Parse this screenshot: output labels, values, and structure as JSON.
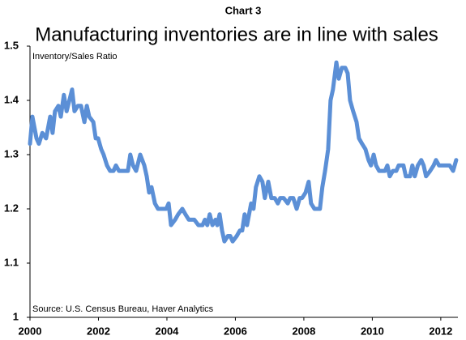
{
  "chart_data": {
    "type": "line",
    "kicker": "Chart 3",
    "title": "Manufacturing inventories are in line with sales",
    "y_label": "Inventory/Sales Ratio",
    "source": "Source: U.S. Census Bureau, Haver Analytics",
    "color": "#5b8fd6",
    "grid": false,
    "xlim": [
      2000,
      2012.5
    ],
    "xticks": [
      2000,
      2002,
      2004,
      2006,
      2008,
      2010,
      2012
    ],
    "ylim": [
      1,
      1.5
    ],
    "yticks": [
      1,
      1.1,
      1.2,
      1.3,
      1.4,
      1.5
    ],
    "x": [
      2000.0,
      2000.07,
      2000.19,
      2000.26,
      2000.36,
      2000.47,
      2000.59,
      2000.66,
      2000.73,
      2000.83,
      2000.9,
      2000.99,
      2001.07,
      2001.23,
      2001.3,
      2001.4,
      2001.49,
      2001.59,
      2001.66,
      2001.73,
      2001.85,
      2001.92,
      2001.99,
      2002.08,
      2002.15,
      2002.25,
      2002.34,
      2002.44,
      2002.51,
      2002.6,
      2002.79,
      2002.86,
      2002.93,
      2003.01,
      2003.1,
      2003.22,
      2003.34,
      2003.41,
      2003.48,
      2003.55,
      2003.65,
      2003.74,
      2003.86,
      2003.98,
      2004.05,
      2004.12,
      2004.24,
      2004.33,
      2004.45,
      2004.54,
      2004.64,
      2004.8,
      2004.92,
      2005.04,
      2005.11,
      2005.18,
      2005.25,
      2005.33,
      2005.42,
      2005.47,
      2005.54,
      2005.61,
      2005.68,
      2005.78,
      2005.85,
      2005.92,
      2006.04,
      2006.13,
      2006.2,
      2006.27,
      2006.34,
      2006.46,
      2006.53,
      2006.6,
      2006.7,
      2006.79,
      2006.86,
      2006.96,
      2007.05,
      2007.15,
      2007.24,
      2007.31,
      2007.41,
      2007.53,
      2007.6,
      2007.69,
      2007.79,
      2007.88,
      2007.95,
      2008.05,
      2008.14,
      2008.21,
      2008.31,
      2008.47,
      2008.54,
      2008.62,
      2008.71,
      2008.78,
      2008.85,
      2008.95,
      2009.02,
      2009.11,
      2009.21,
      2009.28,
      2009.35,
      2009.44,
      2009.54,
      2009.61,
      2009.7,
      2009.8,
      2009.89,
      2009.96,
      2010.04,
      2010.11,
      2010.2,
      2010.37,
      2010.44,
      2010.51,
      2010.6,
      2010.7,
      2010.77,
      2010.91,
      2010.98,
      2011.1,
      2011.17,
      2011.24,
      2011.33,
      2011.43,
      2011.5,
      2011.57,
      2011.69,
      2011.79,
      2011.86,
      2011.95,
      2012.05,
      2012.26,
      2012.36,
      2012.45
    ],
    "values": [
      1.32,
      1.37,
      1.33,
      1.32,
      1.34,
      1.33,
      1.37,
      1.34,
      1.38,
      1.39,
      1.37,
      1.41,
      1.38,
      1.42,
      1.38,
      1.39,
      1.39,
      1.36,
      1.39,
      1.37,
      1.36,
      1.33,
      1.33,
      1.31,
      1.3,
      1.28,
      1.27,
      1.27,
      1.28,
      1.27,
      1.27,
      1.27,
      1.3,
      1.28,
      1.27,
      1.3,
      1.28,
      1.26,
      1.23,
      1.24,
      1.21,
      1.2,
      1.2,
      1.2,
      1.21,
      1.17,
      1.18,
      1.19,
      1.2,
      1.19,
      1.18,
      1.18,
      1.17,
      1.17,
      1.18,
      1.17,
      1.19,
      1.17,
      1.18,
      1.17,
      1.19,
      1.16,
      1.14,
      1.15,
      1.15,
      1.14,
      1.15,
      1.16,
      1.16,
      1.19,
      1.17,
      1.21,
      1.2,
      1.24,
      1.26,
      1.25,
      1.22,
      1.25,
      1.22,
      1.22,
      1.21,
      1.22,
      1.22,
      1.21,
      1.22,
      1.22,
      1.2,
      1.22,
      1.22,
      1.23,
      1.25,
      1.21,
      1.2,
      1.2,
      1.24,
      1.27,
      1.31,
      1.4,
      1.42,
      1.47,
      1.44,
      1.46,
      1.46,
      1.45,
      1.4,
      1.38,
      1.36,
      1.33,
      1.32,
      1.31,
      1.29,
      1.28,
      1.3,
      1.28,
      1.27,
      1.27,
      1.28,
      1.26,
      1.27,
      1.27,
      1.28,
      1.28,
      1.26,
      1.26,
      1.28,
      1.26,
      1.28,
      1.29,
      1.28,
      1.26,
      1.27,
      1.28,
      1.29,
      1.28,
      1.28,
      1.28,
      1.27,
      1.29
    ]
  }
}
